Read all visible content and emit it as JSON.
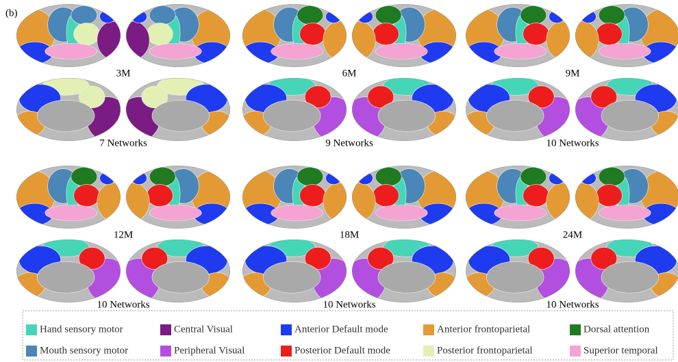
{
  "figure_label": "(b)",
  "panels": [
    {
      "age": "3M",
      "networks": "7 Networks"
    },
    {
      "age": "6M",
      "networks": "9 Networks"
    },
    {
      "age": "9M",
      "networks": "10 Networks"
    },
    {
      "age": "12M",
      "networks": "10 Networks"
    },
    {
      "age": "18M",
      "networks": "10 Networks"
    },
    {
      "age": "24M",
      "networks": "10 Networks"
    }
  ],
  "legend": [
    {
      "label": "Hand sensory motor",
      "color": "#45d6b8"
    },
    {
      "label": "Central Visual",
      "color": "#7b1c84"
    },
    {
      "label": "Anterior Default mode",
      "color": "#1f3bef"
    },
    {
      "label": "Anterior frontoparietal",
      "color": "#e49a34"
    },
    {
      "label": "Dorsal attention",
      "color": "#1f7a22"
    },
    {
      "label": "Mouth sensory motor",
      "color": "#4a86b8"
    },
    {
      "label": "Peripheral Visual",
      "color": "#b34fe0"
    },
    {
      "label": "Posterior Default mode",
      "color": "#ee1d1d"
    },
    {
      "label": "Posterior frontoparietal",
      "color": "#e3f0b4"
    },
    {
      "label": "Superior temporal",
      "color": "#f4a3d2"
    }
  ]
}
